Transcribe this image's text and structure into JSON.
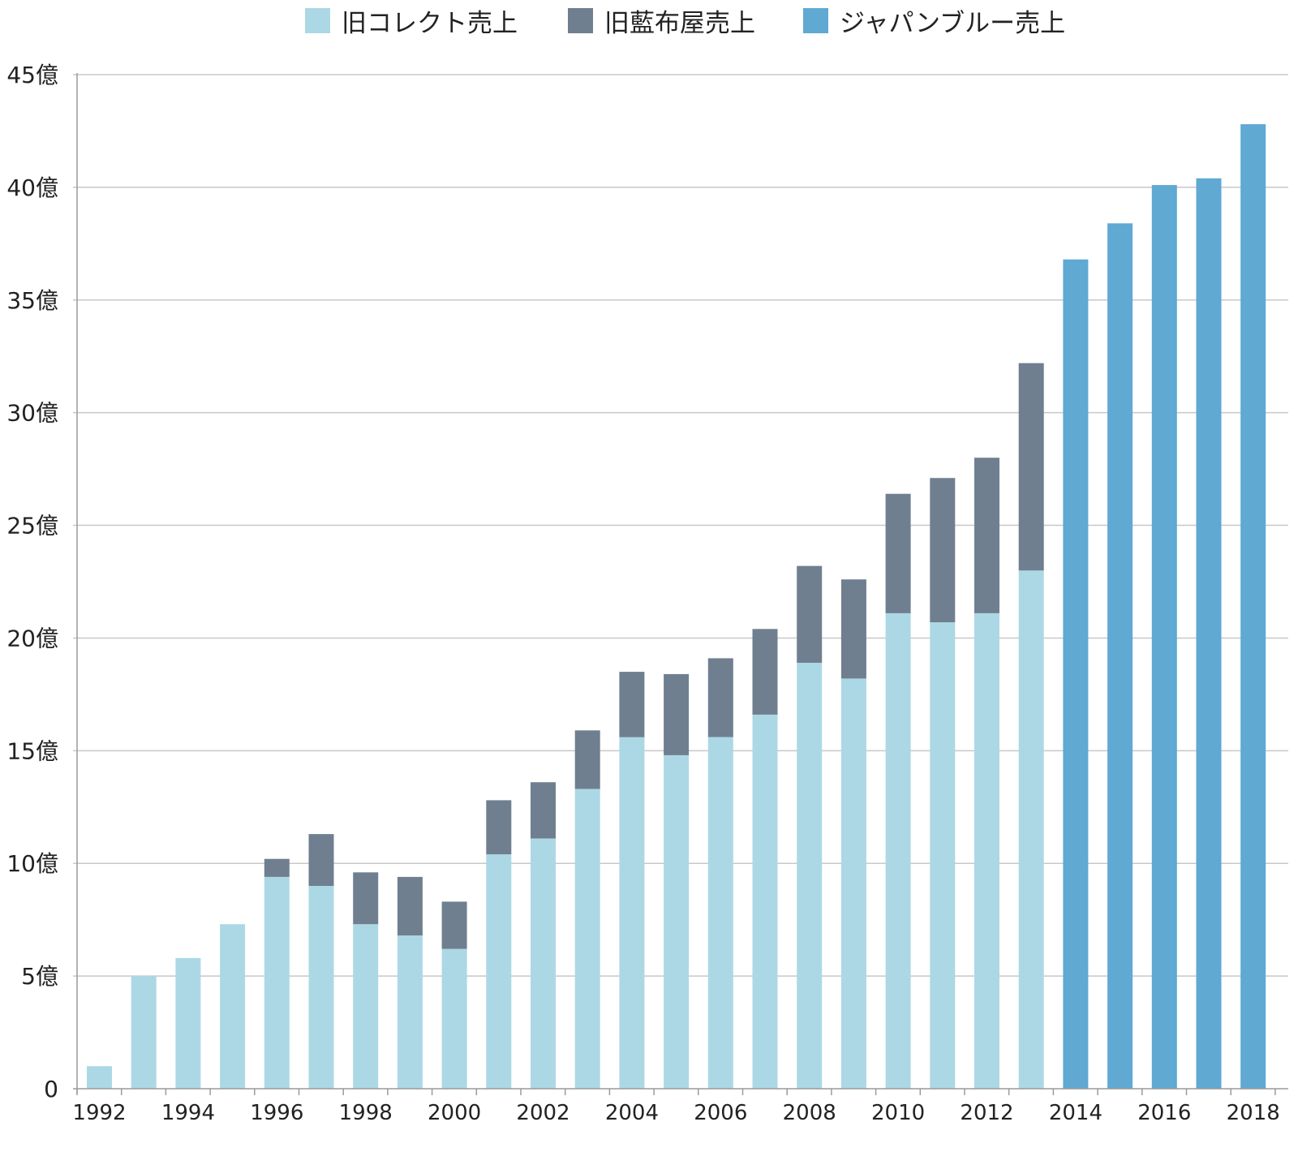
{
  "chart_data": {
    "type": "bar",
    "stacked": true,
    "categories": [
      "1992",
      "1993",
      "1994",
      "1995",
      "1996",
      "1997",
      "1998",
      "1999",
      "2000",
      "2001",
      "2002",
      "2003",
      "2004",
      "2005",
      "2006",
      "2007",
      "2008",
      "2009",
      "2010",
      "2011",
      "2012",
      "2013",
      "2014",
      "2015",
      "2016",
      "2017",
      "2018"
    ],
    "x_tick_labels": [
      "1992",
      "1994",
      "1996",
      "1998",
      "2000",
      "2002",
      "2004",
      "2006",
      "2008",
      "2010",
      "2012",
      "2014",
      "2016",
      "2018"
    ],
    "y_tick_labels": [
      "0",
      "5億",
      "10億",
      "15億",
      "20億",
      "25億",
      "30億",
      "35億",
      "40億",
      "45億"
    ],
    "y_tick_values": [
      0,
      5,
      10,
      15,
      20,
      25,
      30,
      35,
      40,
      45
    ],
    "ylim": [
      0,
      45
    ],
    "grid": true,
    "legend_position": "top",
    "series": [
      {
        "name": "旧コレクト売上",
        "color": "#acd8e5",
        "values": [
          1.0,
          5.0,
          5.8,
          7.3,
          9.4,
          9.0,
          7.3,
          6.8,
          6.2,
          10.4,
          11.1,
          13.3,
          15.6,
          14.8,
          15.6,
          16.6,
          18.9,
          18.2,
          21.1,
          20.7,
          21.1,
          23.0,
          0,
          0,
          0,
          0,
          0
        ]
      },
      {
        "name": "旧藍布屋売上",
        "color": "#6f7f90",
        "values": [
          0,
          0,
          0,
          0,
          0.8,
          2.3,
          2.3,
          2.6,
          2.1,
          2.4,
          2.5,
          2.6,
          2.9,
          3.6,
          3.5,
          3.8,
          4.3,
          4.4,
          5.3,
          6.4,
          6.9,
          9.2,
          0,
          0,
          0,
          0,
          0
        ]
      },
      {
        "name": "ジャパンブルー売上",
        "color": "#5fa9d3",
        "values": [
          0,
          0,
          0,
          0,
          0,
          0,
          0,
          0,
          0,
          0,
          0,
          0,
          0,
          0,
          0,
          0,
          0,
          0,
          0,
          0,
          0,
          0,
          36.8,
          38.4,
          40.1,
          40.4,
          42.8
        ]
      }
    ]
  }
}
